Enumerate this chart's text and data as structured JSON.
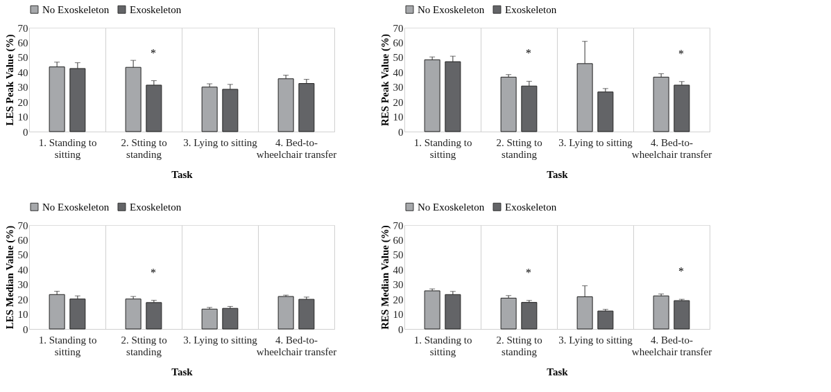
{
  "chart_data": [
    {
      "type": "bar",
      "ylabel": "LES Peak Value  (%)",
      "xlabel": "Task",
      "categories": [
        "1. Standing to sitting",
        "2. Stting to standing",
        "3. Lying to sitting",
        "4. Bed-to-wheelchair transfer"
      ],
      "series": [
        {
          "name": "No Exoskeleton",
          "color": "#a6a8ab",
          "values": [
            43.6,
            43.3,
            30,
            35.6
          ],
          "errors": [
            [
              43.6,
              46.8
            ],
            [
              43.3,
              48
            ],
            [
              30,
              32.2
            ],
            [
              35.6,
              38
            ]
          ]
        },
        {
          "name": "Exoskeleton",
          "color": "#636467",
          "values": [
            42.5,
            31.3,
            28.5,
            32.4
          ],
          "errors": [
            [
              42.5,
              46.4
            ],
            [
              31.3,
              34.3
            ],
            [
              28.5,
              31.8
            ],
            [
              32.4,
              35.2
            ]
          ]
        }
      ],
      "ylim": [
        0,
        70
      ],
      "yticks": [
        0,
        10,
        20,
        30,
        40,
        50,
        60,
        70
      ],
      "grid": "x",
      "legend": "top",
      "annotations": [
        {
          "text": "*",
          "x": "2. Stting to standing",
          "y": 34.3
        }
      ]
    },
    {
      "type": "bar",
      "ylabel": "RES Peak Value (%)",
      "xlabel": "Task",
      "categories": [
        "1. Standing to sitting",
        "2. Stting to standing",
        "3. Lying to sitting",
        "4. Bed-to-wheelchair transfer"
      ],
      "series": [
        {
          "name": "No Exoskeleton",
          "color": "#a6a8ab",
          "values": [
            48.4,
            36.7,
            45.8,
            36.7
          ],
          "errors": [
            [
              48.4,
              50.3
            ],
            [
              36.7,
              38.4
            ],
            [
              45.8,
              60.8
            ],
            [
              36.7,
              39
            ]
          ]
        },
        {
          "name": "Exoskeleton",
          "color": "#636467",
          "values": [
            47.1,
            30.7,
            26.7,
            31.3
          ],
          "errors": [
            [
              47.1,
              50.8
            ],
            [
              30.7,
              33.9
            ],
            [
              26.7,
              29
            ],
            [
              31.3,
              33.7
            ]
          ]
        }
      ],
      "ylim": [
        0,
        70
      ],
      "yticks": [
        0,
        10,
        20,
        30,
        40,
        50,
        60,
        70
      ],
      "grid": "x",
      "legend": "top",
      "annotations": [
        {
          "text": "*",
          "x": "2. Stting to standing",
          "y": 33.9
        },
        {
          "text": "*",
          "x": "4. Bed-to-wheelchair transfer",
          "y": 33.7
        }
      ]
    },
    {
      "type": "bar",
      "ylabel": "LES Median Value  (%)",
      "xlabel": "Task",
      "categories": [
        "1. Standing to sitting",
        "2. Stting to standing",
        "3. Lying to sitting",
        "4. Bed-to-wheelchair transfer"
      ],
      "series": [
        {
          "name": "No Exoskeleton",
          "color": "#a6a8ab",
          "values": [
            23.2,
            20.2,
            13.4,
            21.9
          ],
          "errors": [
            [
              23.2,
              25.4
            ],
            [
              20.2,
              21.9
            ],
            [
              13.4,
              14.5
            ],
            [
              21.9,
              22.8
            ]
          ]
        },
        {
          "name": "Exoskeleton",
          "color": "#636467",
          "values": [
            20.2,
            17.8,
            13.9,
            20
          ],
          "errors": [
            [
              20.2,
              22.3
            ],
            [
              17.8,
              19.3
            ],
            [
              13.9,
              15.2
            ],
            [
              20,
              21.5
            ]
          ]
        }
      ],
      "ylim": [
        0,
        70
      ],
      "yticks": [
        0,
        10,
        20,
        30,
        40,
        50,
        60,
        70
      ],
      "grid": "x",
      "legend": "top",
      "annotations": [
        {
          "text": "*",
          "x": "2. Stting to standing",
          "y": 19.3
        }
      ]
    },
    {
      "type": "bar",
      "ylabel": "RES Median Value (%)",
      "xlabel": "Task",
      "categories": [
        "1. Standing to sitting",
        "2. Stting to standing",
        "3. Lying to sitting",
        "4. Bed-to-wheelchair transfer"
      ],
      "series": [
        {
          "name": "No Exoskeleton",
          "color": "#a6a8ab",
          "values": [
            25.7,
            20.8,
            21.7,
            22.3
          ],
          "errors": [
            [
              25.7,
              27
            ],
            [
              20.8,
              22.5
            ],
            [
              21.7,
              29.1
            ],
            [
              22.3,
              23.6
            ]
          ]
        },
        {
          "name": "Exoskeleton",
          "color": "#636467",
          "values": [
            23.2,
            17.9,
            12.1,
            19.1
          ],
          "errors": [
            [
              23.2,
              25.3
            ],
            [
              17.9,
              19.2
            ],
            [
              12.1,
              13.2
            ],
            [
              19.1,
              20
            ]
          ]
        }
      ],
      "ylim": [
        0,
        70
      ],
      "yticks": [
        0,
        10,
        20,
        30,
        40,
        50,
        60,
        70
      ],
      "grid": "x",
      "legend": "top",
      "annotations": [
        {
          "text": "*",
          "x": "2. Stting to standing",
          "y": 19.2
        },
        {
          "text": "*",
          "x": "4. Bed-to-wheelchair transfer",
          "y": 20
        }
      ]
    }
  ]
}
